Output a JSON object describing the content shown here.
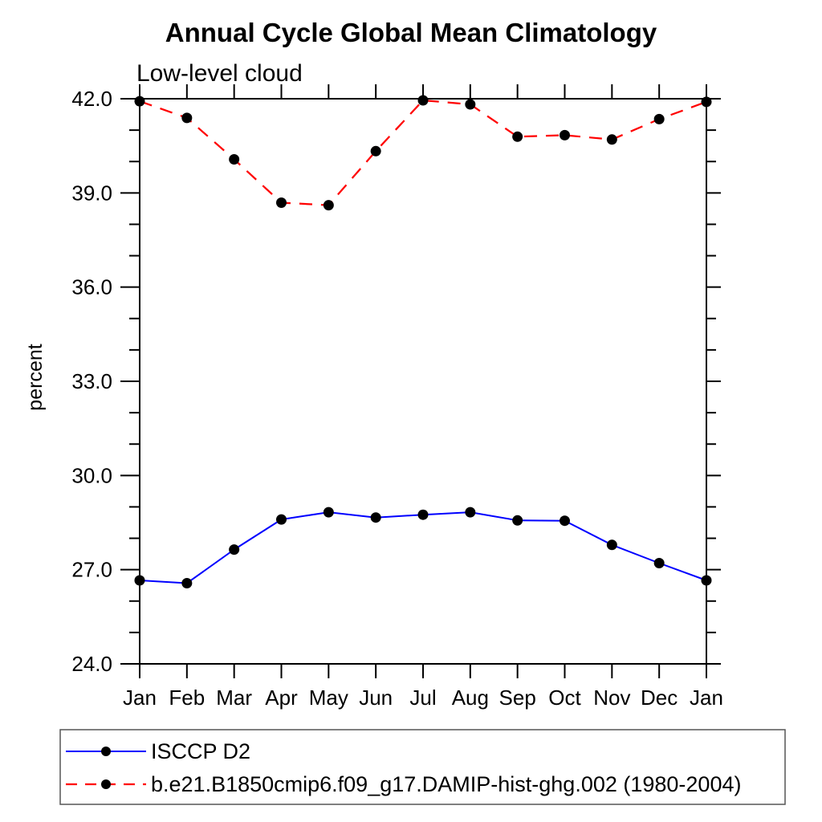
{
  "chart_data": {
    "type": "line",
    "title": "Annual Cycle Global Mean Climatology",
    "subtitle": "Low-level cloud",
    "ylabel": "percent",
    "xlabel": "",
    "categories": [
      "Jan",
      "Feb",
      "Mar",
      "Apr",
      "May",
      "Jun",
      "Jul",
      "Aug",
      "Sep",
      "Oct",
      "Nov",
      "Dec",
      "Jan"
    ],
    "ylim": [
      24.0,
      42.0
    ],
    "ytick_major_step": 3.0,
    "ytick_minor_step": 1.0,
    "ytick_labels": [
      "24.0",
      "27.0",
      "30.0",
      "33.0",
      "36.0",
      "39.0",
      "42.0"
    ],
    "grid": false,
    "legend_position": "bottom-left-box",
    "series": [
      {
        "name": "ISCCP D2",
        "color": "#0000ff",
        "line_style": "solid",
        "marker": "circle",
        "marker_color": "#000000",
        "values": [
          26.66,
          26.57,
          27.64,
          28.6,
          28.83,
          28.66,
          28.75,
          28.83,
          28.57,
          28.56,
          27.79,
          27.21,
          26.66
        ]
      },
      {
        "name": "b.e21.B1850cmip6.f09_g17.DAMIP-hist-ghg.002 (1980-2004)",
        "color": "#ff0000",
        "line_style": "dashed",
        "marker": "circle",
        "marker_color": "#000000",
        "values": [
          41.92,
          41.39,
          40.07,
          38.69,
          38.61,
          40.33,
          41.95,
          41.82,
          40.79,
          40.84,
          40.7,
          41.35,
          41.9
        ]
      }
    ]
  },
  "colors": {
    "frame": "#000000",
    "background": "#ffffff",
    "legend_border": "#555555"
  }
}
